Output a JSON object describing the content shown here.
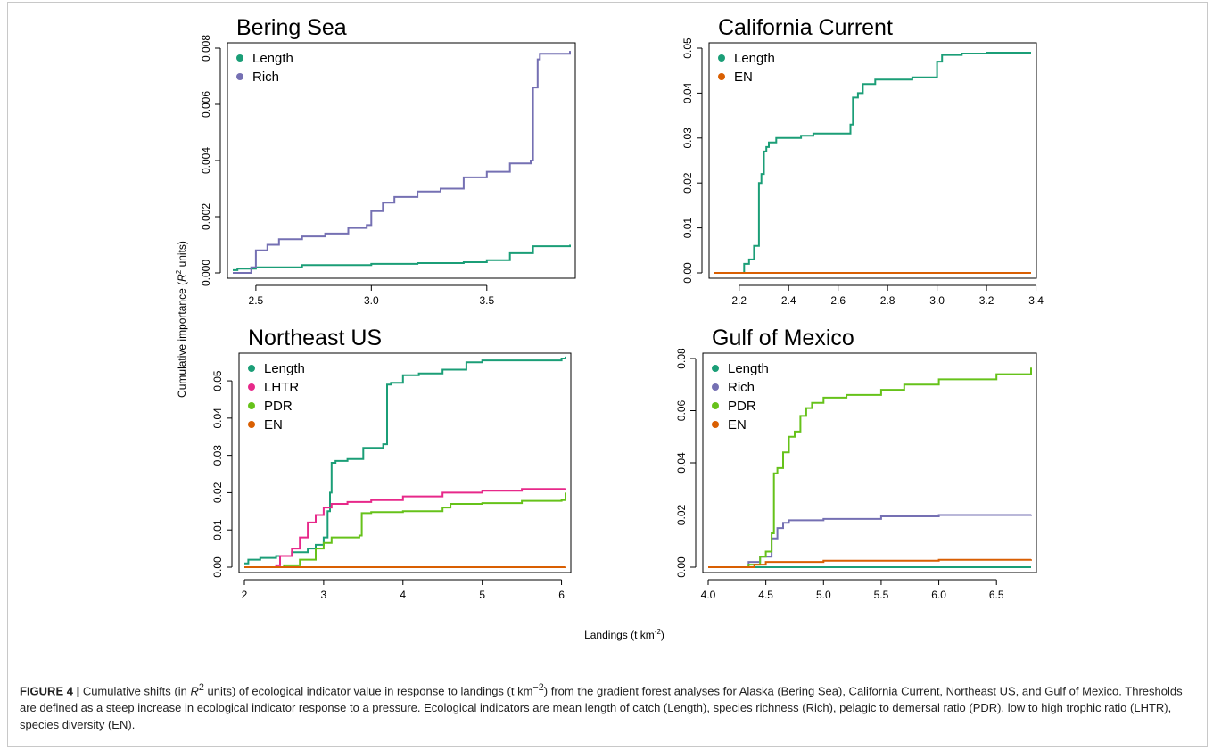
{
  "figure": {
    "ylabel_prefix": "Cumulative importance (",
    "ylabel_r": "R",
    "ylabel_sup": "2",
    "ylabel_suffix": " units)",
    "xlabel_main": "Landings (t km",
    "xlabel_sup": "-2",
    "xlabel_end": ")"
  },
  "caption": {
    "label": "FIGURE 4 |",
    "t1": " Cumulative shifts (in ",
    "r": "R",
    "r_sup": "2",
    "t2": " units) of ecological indicator value in response to landings (t km",
    "km_sup": "−2",
    "t3": ") from the gradient forest analyses for Alaska (Bering Sea), California Current, Northeast US, and Gulf of Mexico. Thresholds are defined as a steep increase in ecological indicator response to a pressure. Ecological indicators are mean length of catch (Length), species richness (Rich), pelagic to demersal ratio (PDR), low to high trophic ratio (LHTR), species diversity (EN)."
  },
  "colors": {
    "Length": "#1b9e77",
    "Rich": "#7570b3",
    "LHTR": "#e7298a",
    "PDR": "#66c21a",
    "EN": "#d95f02"
  },
  "chart_data": [
    {
      "type": "line",
      "title": "Bering Sea",
      "xlim": [
        2.4,
        3.86
      ],
      "ylim": [
        0,
        0.008
      ],
      "xticks": [
        "2.5",
        "3.0",
        "3.5"
      ],
      "xtick_values": [
        2.5,
        3.0,
        3.5
      ],
      "yticks": [
        "0.000",
        "0.002",
        "0.004",
        "0.006",
        "0.008"
      ],
      "ytick_values": [
        0,
        0.002,
        0.004,
        0.006,
        0.008
      ],
      "legend": [
        "Length",
        "Rich"
      ],
      "series": [
        {
          "name": "Length",
          "x": [
            2.4,
            2.42,
            2.5,
            2.7,
            3.0,
            3.2,
            3.4,
            3.5,
            3.6,
            3.7,
            3.86
          ],
          "y": [
            0.0001,
            0.00015,
            0.0002,
            0.00028,
            0.00032,
            0.00035,
            0.00038,
            0.00045,
            0.0007,
            0.00095,
            0.001
          ]
        },
        {
          "name": "Rich",
          "x": [
            2.4,
            2.48,
            2.5,
            2.55,
            2.6,
            2.7,
            2.8,
            2.9,
            2.98,
            3.0,
            3.05,
            3.1,
            3.2,
            3.3,
            3.4,
            3.5,
            3.6,
            3.69,
            3.7,
            3.72,
            3.73,
            3.86
          ],
          "y": [
            0,
            0.0002,
            0.0008,
            0.001,
            0.0012,
            0.0013,
            0.0014,
            0.0016,
            0.0017,
            0.0022,
            0.0025,
            0.0027,
            0.0029,
            0.003,
            0.0034,
            0.0036,
            0.0039,
            0.004,
            0.0066,
            0.0076,
            0.0078,
            0.0079
          ]
        }
      ]
    },
    {
      "type": "line",
      "title": "California Current",
      "xlim": [
        2.1,
        3.38
      ],
      "ylim": [
        0,
        0.05
      ],
      "xticks": [
        "2.2",
        "2.4",
        "2.6",
        "2.8",
        "3.0",
        "3.2",
        "3.4"
      ],
      "xtick_values": [
        2.2,
        2.4,
        2.6,
        2.8,
        3.0,
        3.2,
        3.4
      ],
      "yticks": [
        "0.00",
        "0.01",
        "0.02",
        "0.03",
        "0.04",
        "0.05"
      ],
      "ytick_values": [
        0,
        0.01,
        0.02,
        0.03,
        0.04,
        0.05
      ],
      "legend": [
        "Length",
        "EN"
      ],
      "series": [
        {
          "name": "Length",
          "x": [
            2.21,
            2.22,
            2.24,
            2.26,
            2.28,
            2.29,
            2.3,
            2.31,
            2.32,
            2.33,
            2.35,
            2.4,
            2.45,
            2.5,
            2.55,
            2.6,
            2.65,
            2.66,
            2.68,
            2.7,
            2.75,
            2.8,
            2.9,
            2.99,
            3.0,
            3.02,
            3.1,
            3.2,
            3.38
          ],
          "y": [
            0,
            0.002,
            0.003,
            0.006,
            0.02,
            0.022,
            0.027,
            0.028,
            0.029,
            0.029,
            0.03,
            0.03,
            0.0305,
            0.031,
            0.031,
            0.031,
            0.033,
            0.039,
            0.04,
            0.042,
            0.043,
            0.043,
            0.0435,
            0.0435,
            0.047,
            0.0485,
            0.0488,
            0.049,
            0.049
          ]
        },
        {
          "name": "EN",
          "x": [
            2.1,
            3.38
          ],
          "y": [
            0,
            0
          ]
        }
      ]
    },
    {
      "type": "line",
      "title": "Northeast US",
      "xlim": [
        2.0,
        6.05
      ],
      "ylim": [
        0,
        0.056
      ],
      "xticks": [
        "2",
        "3",
        "4",
        "5",
        "6"
      ],
      "xtick_values": [
        2,
        3,
        4,
        5,
        6
      ],
      "yticks": [
        "0.00",
        "0.01",
        "0.02",
        "0.03",
        "0.04",
        "0.05"
      ],
      "ytick_values": [
        0,
        0.01,
        0.02,
        0.03,
        0.04,
        0.05
      ],
      "legend": [
        "Length",
        "LHTR",
        "PDR",
        "EN"
      ],
      "series": [
        {
          "name": "Length",
          "x": [
            2.0,
            2.05,
            2.2,
            2.4,
            2.6,
            2.8,
            2.9,
            3.0,
            3.05,
            3.08,
            3.1,
            3.15,
            3.3,
            3.5,
            3.75,
            3.8,
            3.85,
            4.0,
            4.2,
            4.5,
            4.8,
            5.0,
            5.5,
            6.0,
            6.05
          ],
          "y": [
            0.001,
            0.002,
            0.0025,
            0.003,
            0.004,
            0.005,
            0.006,
            0.008,
            0.015,
            0.02,
            0.028,
            0.0285,
            0.029,
            0.032,
            0.033,
            0.049,
            0.0495,
            0.0515,
            0.052,
            0.053,
            0.055,
            0.0555,
            0.0555,
            0.056,
            0.0565
          ]
        },
        {
          "name": "LHTR",
          "x": [
            2.0,
            2.4,
            2.45,
            2.6,
            2.7,
            2.8,
            2.9,
            3.0,
            3.1,
            3.3,
            3.6,
            4.0,
            4.5,
            5.0,
            5.5,
            6.0,
            6.05
          ],
          "y": [
            0,
            0.0005,
            0.003,
            0.005,
            0.008,
            0.012,
            0.014,
            0.016,
            0.017,
            0.0175,
            0.018,
            0.019,
            0.02,
            0.0205,
            0.021,
            0.021,
            0.0212
          ]
        },
        {
          "name": "PDR",
          "x": [
            2.0,
            2.5,
            2.7,
            2.9,
            3.0,
            3.1,
            3.45,
            3.48,
            3.6,
            4.0,
            4.5,
            4.6,
            5.0,
            5.5,
            6.0,
            6.05
          ],
          "y": [
            0,
            0.0005,
            0.002,
            0.005,
            0.0065,
            0.008,
            0.0085,
            0.0145,
            0.0148,
            0.015,
            0.016,
            0.017,
            0.0172,
            0.0178,
            0.018,
            0.02
          ]
        },
        {
          "name": "EN",
          "x": [
            2.0,
            6.05
          ],
          "y": [
            0,
            0.0002
          ]
        }
      ]
    },
    {
      "type": "line",
      "title": "Gulf of Mexico",
      "xlim": [
        4.0,
        6.8
      ],
      "ylim": [
        0,
        0.08
      ],
      "xticks": [
        "4.0",
        "4.5",
        "5.0",
        "5.5",
        "6.0",
        "6.5"
      ],
      "xtick_values": [
        4.0,
        4.5,
        5.0,
        5.5,
        6.0,
        6.5
      ],
      "yticks": [
        "0.00",
        "0.02",
        "0.04",
        "0.06",
        "0.08"
      ],
      "ytick_values": [
        0,
        0.02,
        0.04,
        0.06,
        0.08
      ],
      "legend": [
        "Length",
        "Rich",
        "PDR",
        "EN"
      ],
      "series": [
        {
          "name": "Length",
          "x": [
            4.0,
            6.8
          ],
          "y": [
            0,
            0
          ]
        },
        {
          "name": "Rich",
          "x": [
            4.0,
            4.3,
            4.35,
            4.45,
            4.55,
            4.6,
            4.65,
            4.7,
            5.0,
            5.5,
            6.0,
            6.8
          ],
          "y": [
            0,
            0,
            0.002,
            0.004,
            0.011,
            0.015,
            0.017,
            0.018,
            0.0185,
            0.0195,
            0.02,
            0.0202
          ]
        },
        {
          "name": "PDR",
          "x": [
            4.0,
            4.35,
            4.45,
            4.5,
            4.55,
            4.57,
            4.6,
            4.65,
            4.7,
            4.75,
            4.8,
            4.85,
            4.9,
            5.0,
            5.2,
            5.5,
            5.7,
            6.0,
            6.5,
            6.8
          ],
          "y": [
            0,
            0.001,
            0.004,
            0.006,
            0.013,
            0.036,
            0.038,
            0.044,
            0.05,
            0.052,
            0.058,
            0.061,
            0.063,
            0.065,
            0.066,
            0.068,
            0.07,
            0.072,
            0.074,
            0.0765
          ]
        },
        {
          "name": "EN",
          "x": [
            4.0,
            4.3,
            4.4,
            4.5,
            5.0,
            6.0,
            6.8
          ],
          "y": [
            0,
            0,
            0.001,
            0.002,
            0.0025,
            0.0028,
            0.003
          ]
        }
      ]
    }
  ]
}
